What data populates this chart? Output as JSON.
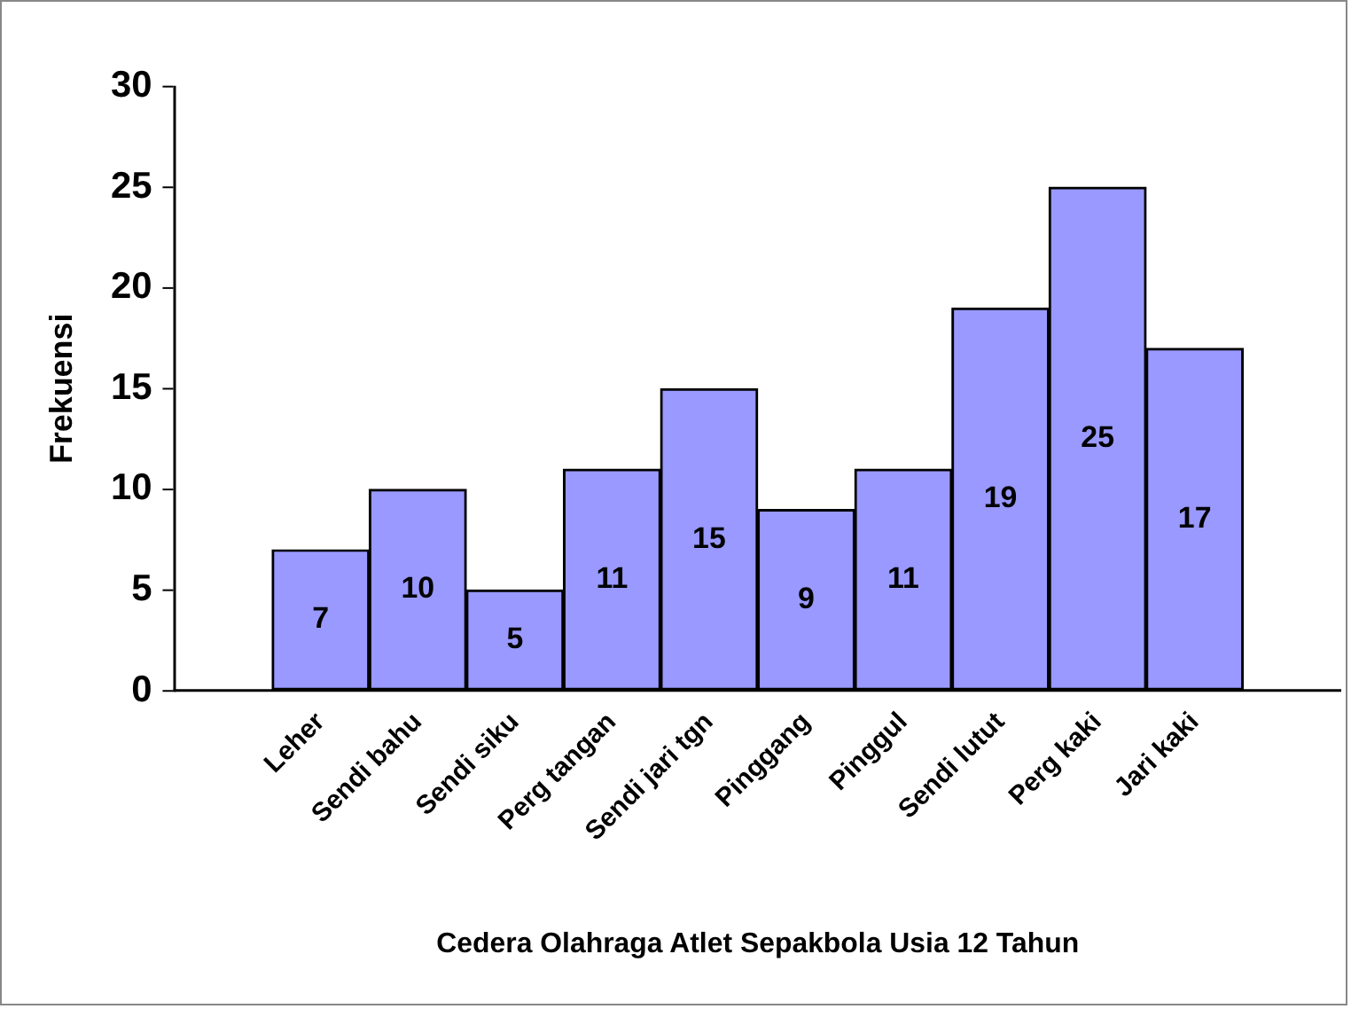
{
  "chart_data": {
    "type": "bar",
    "xlabel": "Cedera Olahraga Atlet Sepakbola Usia 12 Tahun",
    "ylabel": "Frekuensi",
    "categories": [
      null,
      "Leher",
      "Sendi bahu",
      "Sendi siku",
      "Perg tangan",
      "Sendi jari tgn",
      "Pinggang",
      "Pinggul",
      "Sendi lutut",
      "Perg kaki",
      "Jari kaki",
      null
    ],
    "values": [
      null,
      7,
      10,
      5,
      11,
      15,
      9,
      11,
      19,
      25,
      17,
      null
    ],
    "color": "#9999ff",
    "ylim": [
      0,
      30
    ],
    "yticks": [
      0,
      5,
      10,
      15,
      20,
      25,
      30
    ],
    "grid": false,
    "legend": false,
    "data_labels": true
  }
}
